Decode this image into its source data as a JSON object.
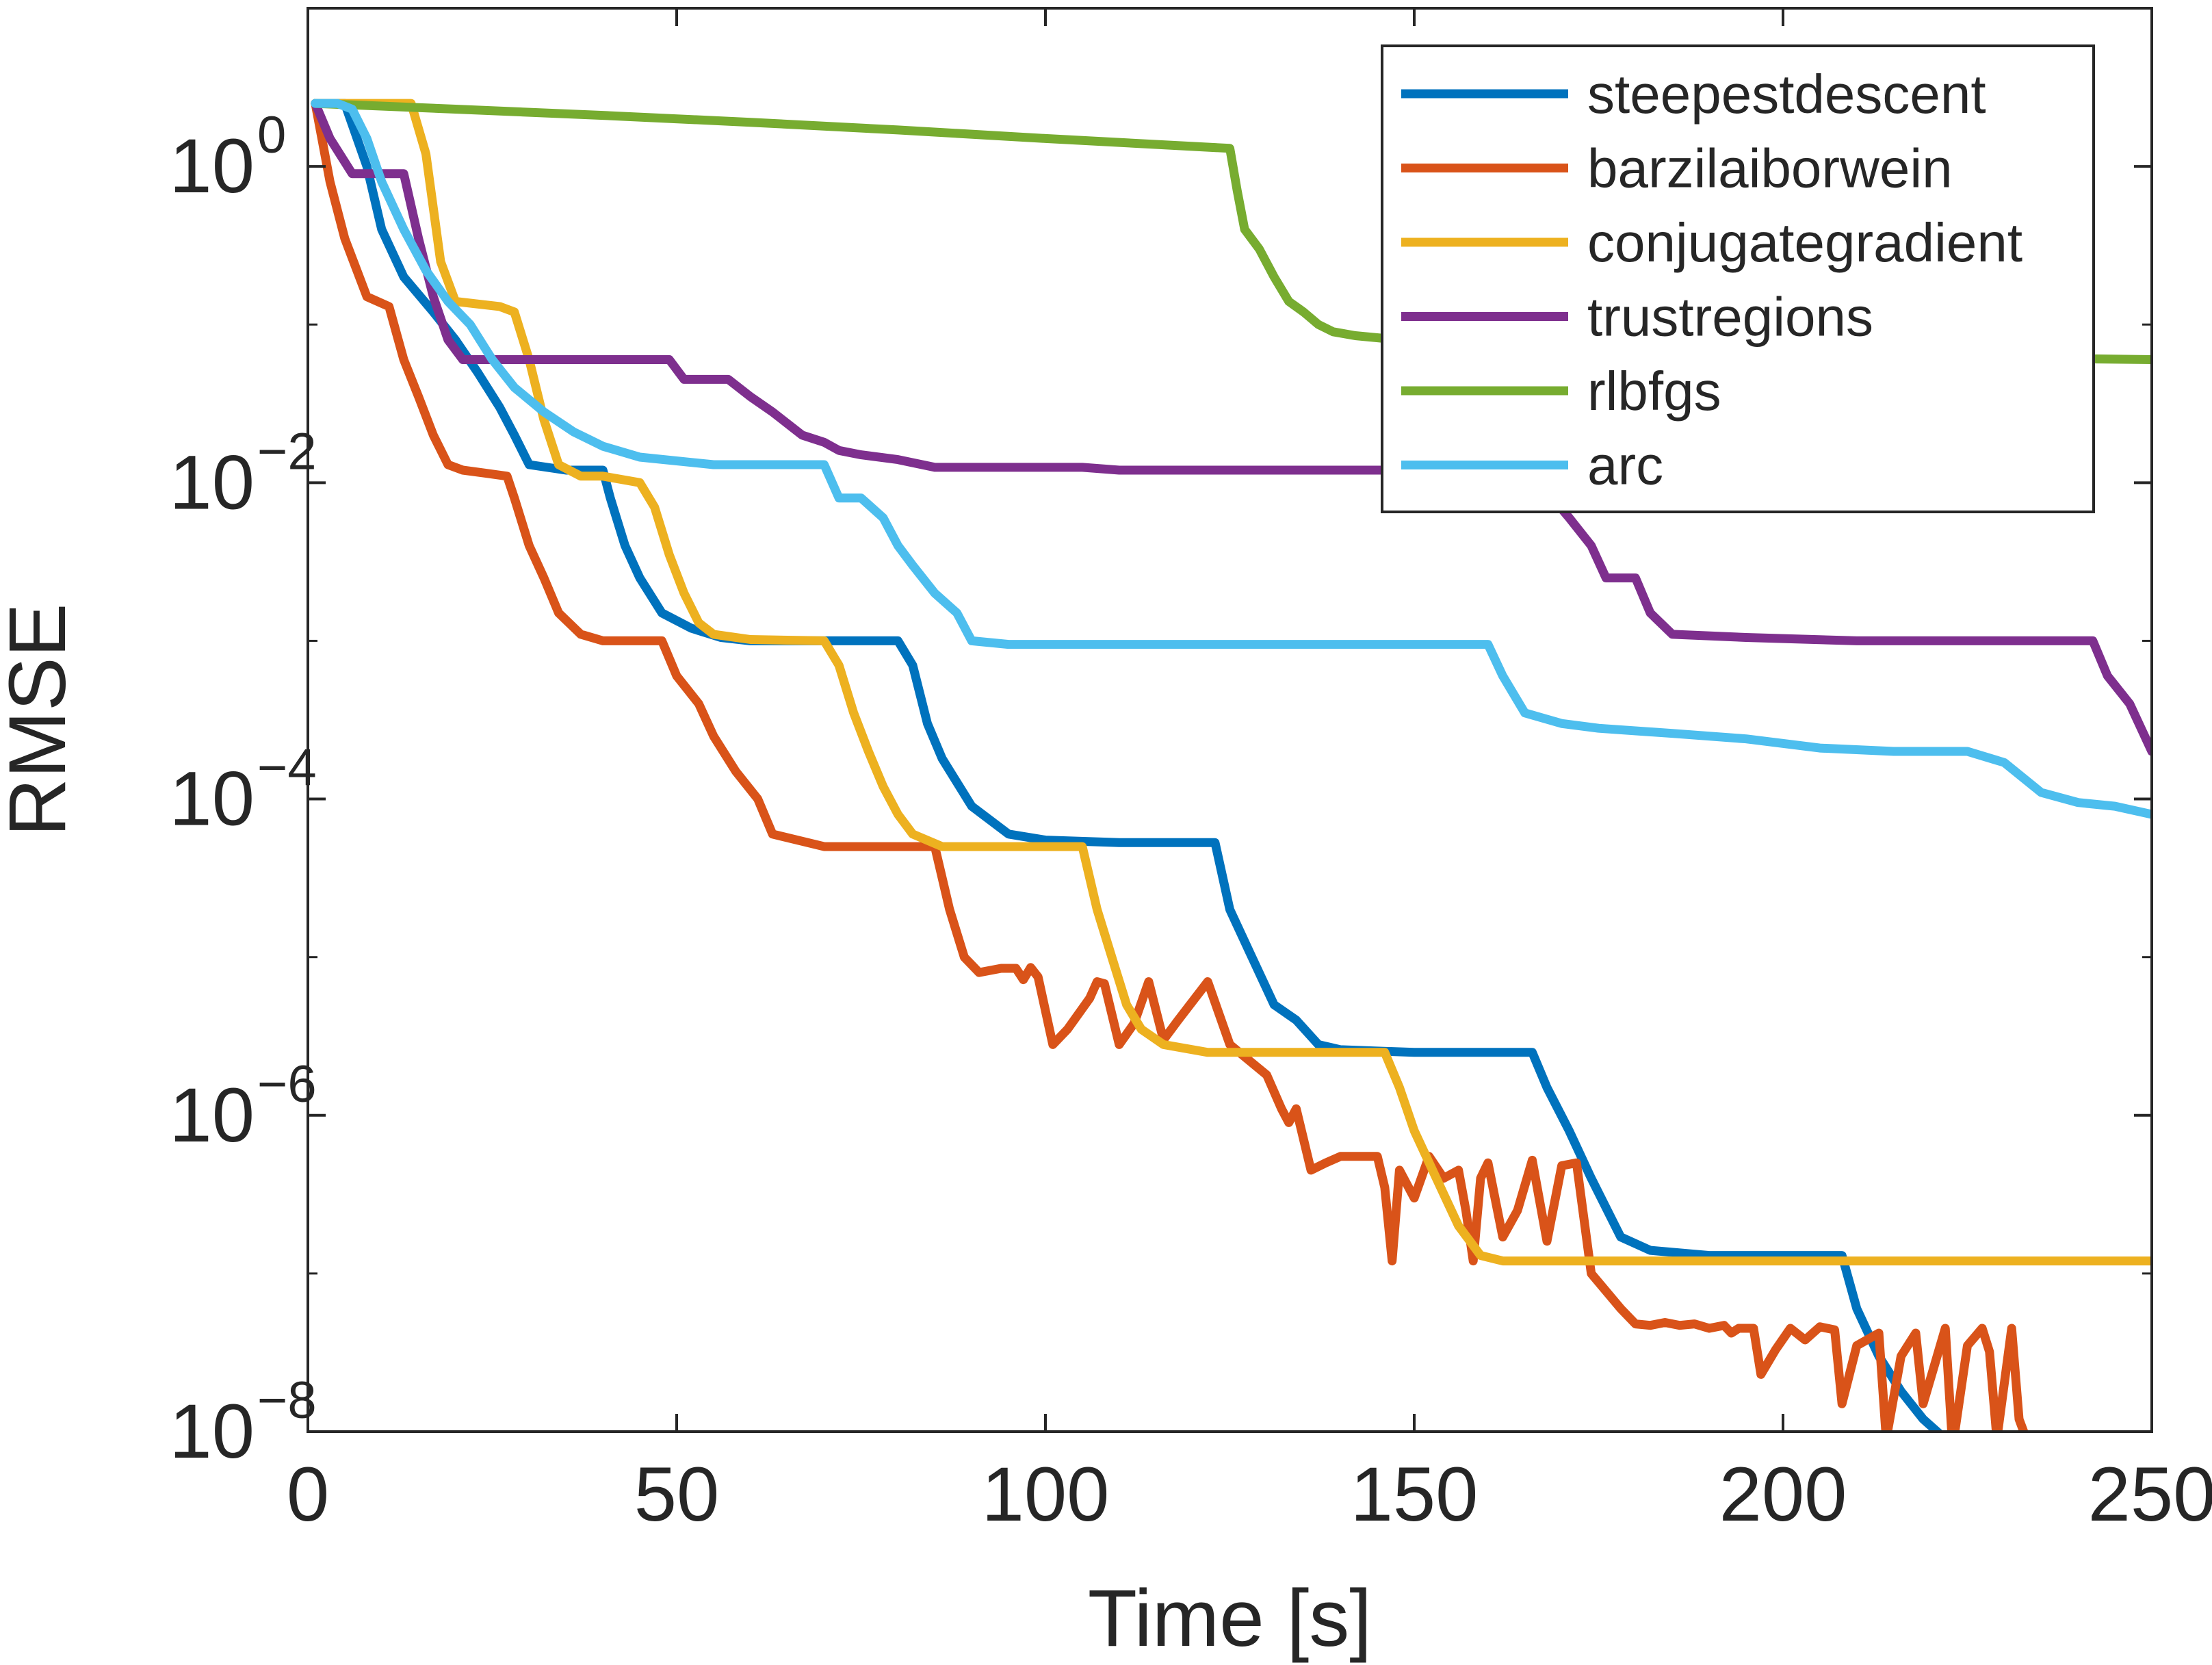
{
  "chart_data": {
    "type": "line",
    "title": "",
    "xlabel": "Time [s]",
    "ylabel": "RMSE",
    "xlim": [
      0,
      250
    ],
    "ylim": [
      1e-08,
      10
    ],
    "yscale": "log",
    "grid": false,
    "legend_position": "top-right",
    "x_ticks": [
      0,
      50,
      100,
      150,
      200,
      250
    ],
    "x_tick_labels": [
      "0",
      "50",
      "100",
      "150",
      "200",
      "250"
    ],
    "y_ticks": [
      {
        "value": 1e-08,
        "base": "10",
        "exp": "−8"
      },
      {
        "value": 1e-06,
        "base": "10",
        "exp": "−6"
      },
      {
        "value": 0.0001,
        "base": "10",
        "exp": "−4"
      },
      {
        "value": 0.01,
        "base": "10",
        "exp": "−2"
      },
      {
        "value": 1,
        "base": "10",
        "exp": "0"
      }
    ],
    "series": [
      {
        "name": "steepestdescent",
        "color": "#0072BD",
        "points": [
          [
            1,
            2.5
          ],
          [
            5,
            2.5
          ],
          [
            8,
            1.0
          ],
          [
            10,
            0.4
          ],
          [
            13,
            0.2
          ],
          [
            17,
            0.12
          ],
          [
            20,
            0.08
          ],
          [
            23,
            0.05
          ],
          [
            26,
            0.03
          ],
          [
            28,
            0.02
          ],
          [
            30,
            0.013
          ],
          [
            35,
            0.012
          ],
          [
            40,
            0.012
          ],
          [
            41,
            0.008
          ],
          [
            43,
            0.004
          ],
          [
            45,
            0.0025
          ],
          [
            48,
            0.0015
          ],
          [
            52,
            0.0012
          ],
          [
            56,
            0.00105
          ],
          [
            60,
            0.001
          ],
          [
            70,
            0.001
          ],
          [
            80,
            0.001
          ],
          [
            82,
            0.0007
          ],
          [
            84,
            0.0003
          ],
          [
            86,
            0.00018
          ],
          [
            90,
            9e-05
          ],
          [
            95,
            6e-05
          ],
          [
            100,
            5.5e-05
          ],
          [
            110,
            5.3e-05
          ],
          [
            123,
            5.3e-05
          ],
          [
            125,
            2e-05
          ],
          [
            128,
            1e-05
          ],
          [
            131,
            5e-06
          ],
          [
            134,
            4e-06
          ],
          [
            137,
            2.8e-06
          ],
          [
            140,
            2.6e-06
          ],
          [
            150,
            2.5e-06
          ],
          [
            166,
            2.5e-06
          ],
          [
            168,
            1.5e-06
          ],
          [
            171,
            8e-07
          ],
          [
            174,
            4e-07
          ],
          [
            178,
            1.7e-07
          ],
          [
            182,
            1.4e-07
          ],
          [
            190,
            1.3e-07
          ],
          [
            208,
            1.3e-07
          ],
          [
            210,
            6e-08
          ],
          [
            213,
            3e-08
          ],
          [
            216,
            1.8e-08
          ],
          [
            219,
            1.2e-08
          ],
          [
            222,
            9e-09
          ]
        ]
      },
      {
        "name": "barzilaiborwein",
        "color": "#D95319",
        "points": [
          [
            1,
            2.5
          ],
          [
            3,
            0.8
          ],
          [
            5,
            0.35
          ],
          [
            8,
            0.15
          ],
          [
            11,
            0.13
          ],
          [
            13,
            0.06
          ],
          [
            15,
            0.035
          ],
          [
            17,
            0.02
          ],
          [
            19,
            0.013
          ],
          [
            21,
            0.012
          ],
          [
            24,
            0.0115
          ],
          [
            27,
            0.011
          ],
          [
            28,
            0.008
          ],
          [
            30,
            0.004
          ],
          [
            32,
            0.0025
          ],
          [
            34,
            0.0015
          ],
          [
            37,
            0.0011
          ],
          [
            40,
            0.001
          ],
          [
            48,
            0.001
          ],
          [
            50,
            0.0006
          ],
          [
            53,
            0.0004
          ],
          [
            55,
            0.00025
          ],
          [
            58,
            0.00015
          ],
          [
            61,
            0.0001
          ],
          [
            63,
            6e-05
          ],
          [
            70,
            5e-05
          ],
          [
            85,
            5e-05
          ],
          [
            87,
            2e-05
          ],
          [
            89,
            1e-05
          ],
          [
            91,
            8e-06
          ],
          [
            94,
            8.5e-06
          ],
          [
            96,
            8.5e-06
          ],
          [
            97,
            7.2e-06
          ],
          [
            98,
            8.6e-06
          ],
          [
            99,
            7.5e-06
          ],
          [
            101,
            2.8e-06
          ],
          [
            103,
            3.5e-06
          ],
          [
            106,
            5.5e-06
          ],
          [
            107,
            7e-06
          ],
          [
            108,
            6.8e-06
          ],
          [
            110,
            2.8e-06
          ],
          [
            112,
            3.8e-06
          ],
          [
            114,
            7e-06
          ],
          [
            116,
            3e-06
          ],
          [
            118,
            4e-06
          ],
          [
            122,
            7e-06
          ],
          [
            125,
            2.8e-06
          ],
          [
            130,
            1.8e-06
          ],
          [
            132,
            1.1e-06
          ],
          [
            133,
            9e-07
          ],
          [
            134,
            1.1e-06
          ],
          [
            136,
            4.5e-07
          ],
          [
            138,
            5e-07
          ],
          [
            140,
            5.5e-07
          ],
          [
            145,
            5.5e-07
          ],
          [
            146,
            3.5e-07
          ],
          [
            147,
            1.2e-07
          ],
          [
            148,
            4.5e-07
          ],
          [
            150,
            3e-07
          ],
          [
            152,
            5.5e-07
          ],
          [
            154,
            4e-07
          ],
          [
            156,
            4.5e-07
          ],
          [
            157,
            2.5e-07
          ],
          [
            158,
            1.2e-07
          ],
          [
            159,
            4e-07
          ],
          [
            160,
            5e-07
          ],
          [
            162,
            1.7e-07
          ],
          [
            164,
            2.5e-07
          ],
          [
            166,
            5.2e-07
          ],
          [
            168,
            1.6e-07
          ],
          [
            170,
            4.8e-07
          ],
          [
            172,
            5e-07
          ],
          [
            174,
            1e-07
          ],
          [
            178,
            6e-08
          ],
          [
            180,
            4.8e-08
          ],
          [
            182,
            4.7e-08
          ],
          [
            184,
            4.9e-08
          ],
          [
            186,
            4.7e-08
          ],
          [
            188,
            4.8e-08
          ],
          [
            190,
            4.5e-08
          ],
          [
            192,
            4.7e-08
          ],
          [
            193,
            4.2e-08
          ],
          [
            194,
            4.5e-08
          ],
          [
            196,
            4.5e-08
          ],
          [
            197,
            2.3e-08
          ],
          [
            199,
            3.3e-08
          ],
          [
            201,
            4.5e-08
          ],
          [
            203,
            3.8e-08
          ],
          [
            205,
            4.6e-08
          ],
          [
            207,
            4.4e-08
          ],
          [
            208,
            1.5e-08
          ],
          [
            210,
            3.5e-08
          ],
          [
            213,
            4.2e-08
          ],
          [
            214,
            9e-09
          ],
          [
            216,
            3e-08
          ],
          [
            218,
            4.2e-08
          ],
          [
            219,
            1.5e-08
          ],
          [
            222,
            4.5e-08
          ],
          [
            223,
            8e-09
          ],
          [
            225,
            3.5e-08
          ],
          [
            227,
            4.5e-08
          ],
          [
            228,
            3.2e-08
          ],
          [
            229,
            9e-09
          ],
          [
            231,
            4.5e-08
          ],
          [
            232,
            1.2e-08
          ],
          [
            233,
            9e-09
          ]
        ]
      },
      {
        "name": "conjugategradient",
        "color": "#EDB120",
        "points": [
          [
            1,
            2.5
          ],
          [
            14,
            2.5
          ],
          [
            16,
            1.2
          ],
          [
            18,
            0.25
          ],
          [
            20,
            0.14
          ],
          [
            26,
            0.13
          ],
          [
            28,
            0.12
          ],
          [
            30,
            0.06
          ],
          [
            32,
            0.025
          ],
          [
            34,
            0.013
          ],
          [
            37,
            0.011
          ],
          [
            40,
            0.011
          ],
          [
            45,
            0.01
          ],
          [
            47,
            0.007
          ],
          [
            49,
            0.0035
          ],
          [
            51,
            0.002
          ],
          [
            53,
            0.0013
          ],
          [
            55,
            0.0011
          ],
          [
            60,
            0.00102
          ],
          [
            70,
            0.001
          ],
          [
            72,
            0.0007
          ],
          [
            74,
            0.00035
          ],
          [
            76,
            0.0002
          ],
          [
            78,
            0.00012
          ],
          [
            80,
            8e-05
          ],
          [
            82,
            6e-05
          ],
          [
            86,
            5e-05
          ],
          [
            100,
            5e-05
          ],
          [
            105,
            5e-05
          ],
          [
            107,
            2e-05
          ],
          [
            109,
            1e-05
          ],
          [
            111,
            5e-06
          ],
          [
            113,
            3.5e-06
          ],
          [
            116,
            2.8e-06
          ],
          [
            122,
            2.5e-06
          ],
          [
            130,
            2.5e-06
          ],
          [
            146,
            2.5e-06
          ],
          [
            148,
            1.5e-06
          ],
          [
            150,
            8e-07
          ],
          [
            153,
            4e-07
          ],
          [
            156,
            2e-07
          ],
          [
            159,
            1.3e-07
          ],
          [
            162,
            1.2e-07
          ],
          [
            180,
            1.2e-07
          ],
          [
            250,
            1.2e-07
          ]
        ]
      },
      {
        "name": "trustregions",
        "color": "#7E2F8E",
        "points": [
          [
            1,
            2.5
          ],
          [
            3,
            1.5
          ],
          [
            6,
            0.9
          ],
          [
            9,
            0.9
          ],
          [
            13,
            0.9
          ],
          [
            15,
            0.35
          ],
          [
            17,
            0.15
          ],
          [
            19,
            0.08
          ],
          [
            21,
            0.06
          ],
          [
            30,
            0.06
          ],
          [
            40,
            0.06
          ],
          [
            49,
            0.06
          ],
          [
            51,
            0.045
          ],
          [
            57,
            0.045
          ],
          [
            60,
            0.035
          ],
          [
            63,
            0.028
          ],
          [
            67,
            0.02
          ],
          [
            70,
            0.018
          ],
          [
            72,
            0.016
          ],
          [
            75,
            0.015
          ],
          [
            80,
            0.014
          ],
          [
            85,
            0.0125
          ],
          [
            90,
            0.0125
          ],
          [
            105,
            0.0125
          ],
          [
            110,
            0.012
          ],
          [
            150,
            0.012
          ],
          [
            160,
            0.012
          ],
          [
            167,
            0.01
          ],
          [
            171,
            0.006
          ],
          [
            174,
            0.004
          ],
          [
            176,
            0.0025
          ],
          [
            180,
            0.0025
          ],
          [
            182,
            0.0015
          ],
          [
            185,
            0.0011
          ],
          [
            195,
            0.00105
          ],
          [
            210,
            0.001
          ],
          [
            230,
            0.001
          ],
          [
            242,
            0.001
          ],
          [
            244,
            0.0006
          ],
          [
            247,
            0.0004
          ],
          [
            250,
            0.0002
          ]
        ]
      },
      {
        "name": "rlbfgs",
        "color": "#77AC30",
        "points": [
          [
            1,
            2.5
          ],
          [
            20,
            2.3
          ],
          [
            40,
            2.1
          ],
          [
            60,
            1.9
          ],
          [
            80,
            1.7
          ],
          [
            100,
            1.5
          ],
          [
            125,
            1.3
          ],
          [
            126,
            0.7
          ],
          [
            127,
            0.4
          ],
          [
            129,
            0.3
          ],
          [
            131,
            0.2
          ],
          [
            133,
            0.14
          ],
          [
            135,
            0.12
          ],
          [
            137,
            0.1
          ],
          [
            139,
            0.09
          ],
          [
            142,
            0.085
          ],
          [
            148,
            0.08
          ],
          [
            160,
            0.075
          ],
          [
            180,
            0.07
          ],
          [
            200,
            0.065
          ],
          [
            225,
            0.062
          ],
          [
            250,
            0.06
          ]
        ]
      },
      {
        "name": "arc",
        "color": "#4DBEEE",
        "points": [
          [
            1,
            2.5
          ],
          [
            4,
            2.5
          ],
          [
            6,
            2.3
          ],
          [
            8,
            1.5
          ],
          [
            10,
            0.8
          ],
          [
            13,
            0.4
          ],
          [
            16,
            0.22
          ],
          [
            19,
            0.14
          ],
          [
            22,
            0.1
          ],
          [
            25,
            0.06
          ],
          [
            28,
            0.04
          ],
          [
            32,
            0.028
          ],
          [
            36,
            0.021
          ],
          [
            40,
            0.017
          ],
          [
            45,
            0.0145
          ],
          [
            55,
            0.013
          ],
          [
            65,
            0.013
          ],
          [
            70,
            0.013
          ],
          [
            72,
            0.008
          ],
          [
            75,
            0.008
          ],
          [
            78,
            0.006
          ],
          [
            80,
            0.004
          ],
          [
            82,
            0.003
          ],
          [
            85,
            0.002
          ],
          [
            88,
            0.0015
          ],
          [
            90,
            0.001
          ],
          [
            95,
            0.00095
          ],
          [
            110,
            0.00095
          ],
          [
            130,
            0.00095
          ],
          [
            160,
            0.00095
          ],
          [
            162,
            0.0006
          ],
          [
            165,
            0.00035
          ],
          [
            170,
            0.0003
          ],
          [
            175,
            0.00028
          ],
          [
            185,
            0.00026
          ],
          [
            195,
            0.00024
          ],
          [
            205,
            0.00021
          ],
          [
            215,
            0.0002
          ],
          [
            225,
            0.0002
          ],
          [
            230,
            0.00017
          ],
          [
            235,
            0.00011
          ],
          [
            240,
            9.5e-05
          ],
          [
            245,
            9e-05
          ],
          [
            250,
            8e-05
          ]
        ]
      }
    ]
  }
}
